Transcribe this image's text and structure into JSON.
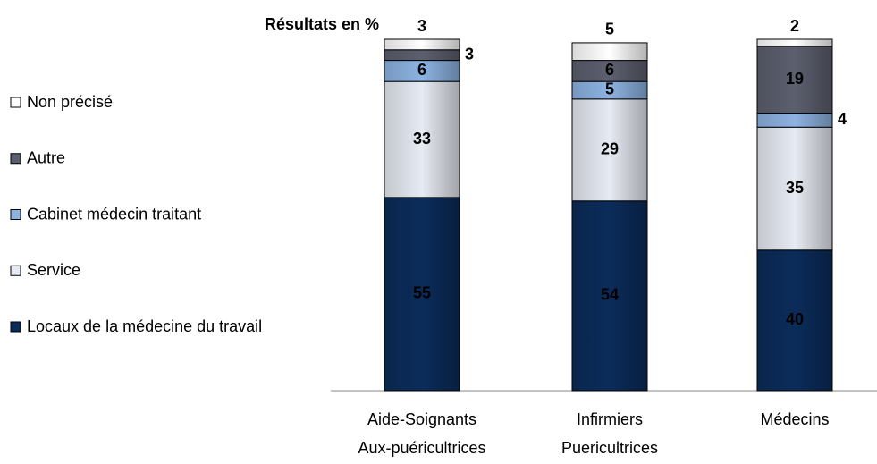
{
  "chart_data": {
    "type": "stacked_bar",
    "title": "Résultats en %",
    "categories": [
      "Aide-Soignants\nAux-puéricultrices",
      "Infirmiers\nPuericultrices",
      "Médecins"
    ],
    "series": [
      {
        "name": "Locaux de la médecine du travail",
        "color": "#0b2c5a",
        "values": [
          55,
          54,
          40
        ]
      },
      {
        "name": "Service",
        "color": "#e6eaf2",
        "values": [
          33,
          29,
          35
        ]
      },
      {
        "name": "Cabinet médecin traitant",
        "color": "#8db3e2",
        "values": [
          6,
          5,
          4
        ]
      },
      {
        "name": "Autre",
        "color": "#5c5f6e",
        "values": [
          3,
          6,
          19
        ]
      },
      {
        "name": "Non précisé",
        "color": "#ffffff",
        "values": [
          3,
          5,
          2
        ]
      }
    ],
    "ylim": [
      0,
      100
    ]
  }
}
